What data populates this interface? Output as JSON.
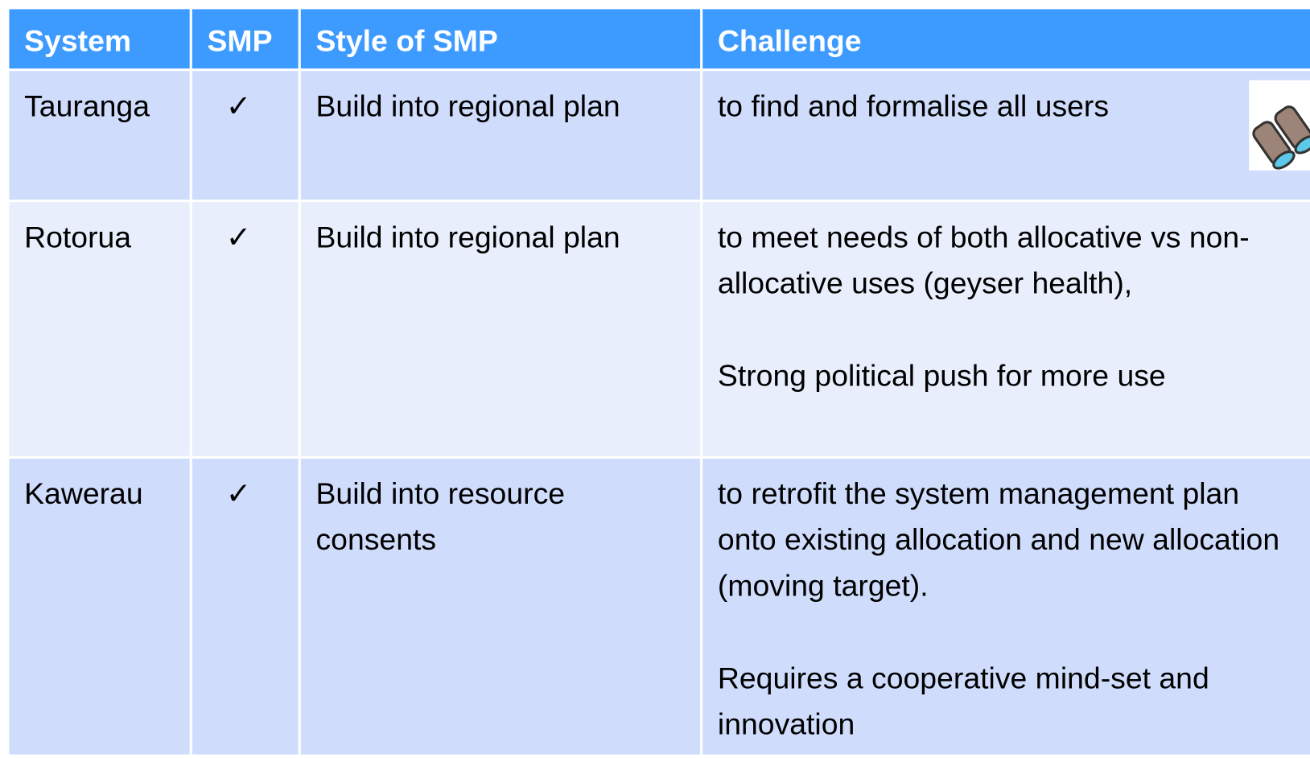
{
  "table": {
    "header": [
      "System",
      "SMP",
      "Style of SMP",
      "Challenge"
    ],
    "rows": [
      {
        "system": "Tauranga",
        "smp": "✓",
        "style": "Build into regional plan",
        "challenge": [
          "to find and formalise all users"
        ]
      },
      {
        "system": "Rotorua",
        "smp": "✓",
        "style": "Build into regional plan",
        "challenge": [
          "to meet needs of both allocative vs non-allocative uses (geyser health),",
          "Strong political push for more use"
        ]
      },
      {
        "system": "Kawerau",
        "smp": "✓",
        "style": "Build into resource consents",
        "challenge": [
          "to retrofit the system management plan onto existing allocation and new allocation (moving target).",
          "Requires a cooperative mind-set and innovation"
        ]
      }
    ]
  }
}
